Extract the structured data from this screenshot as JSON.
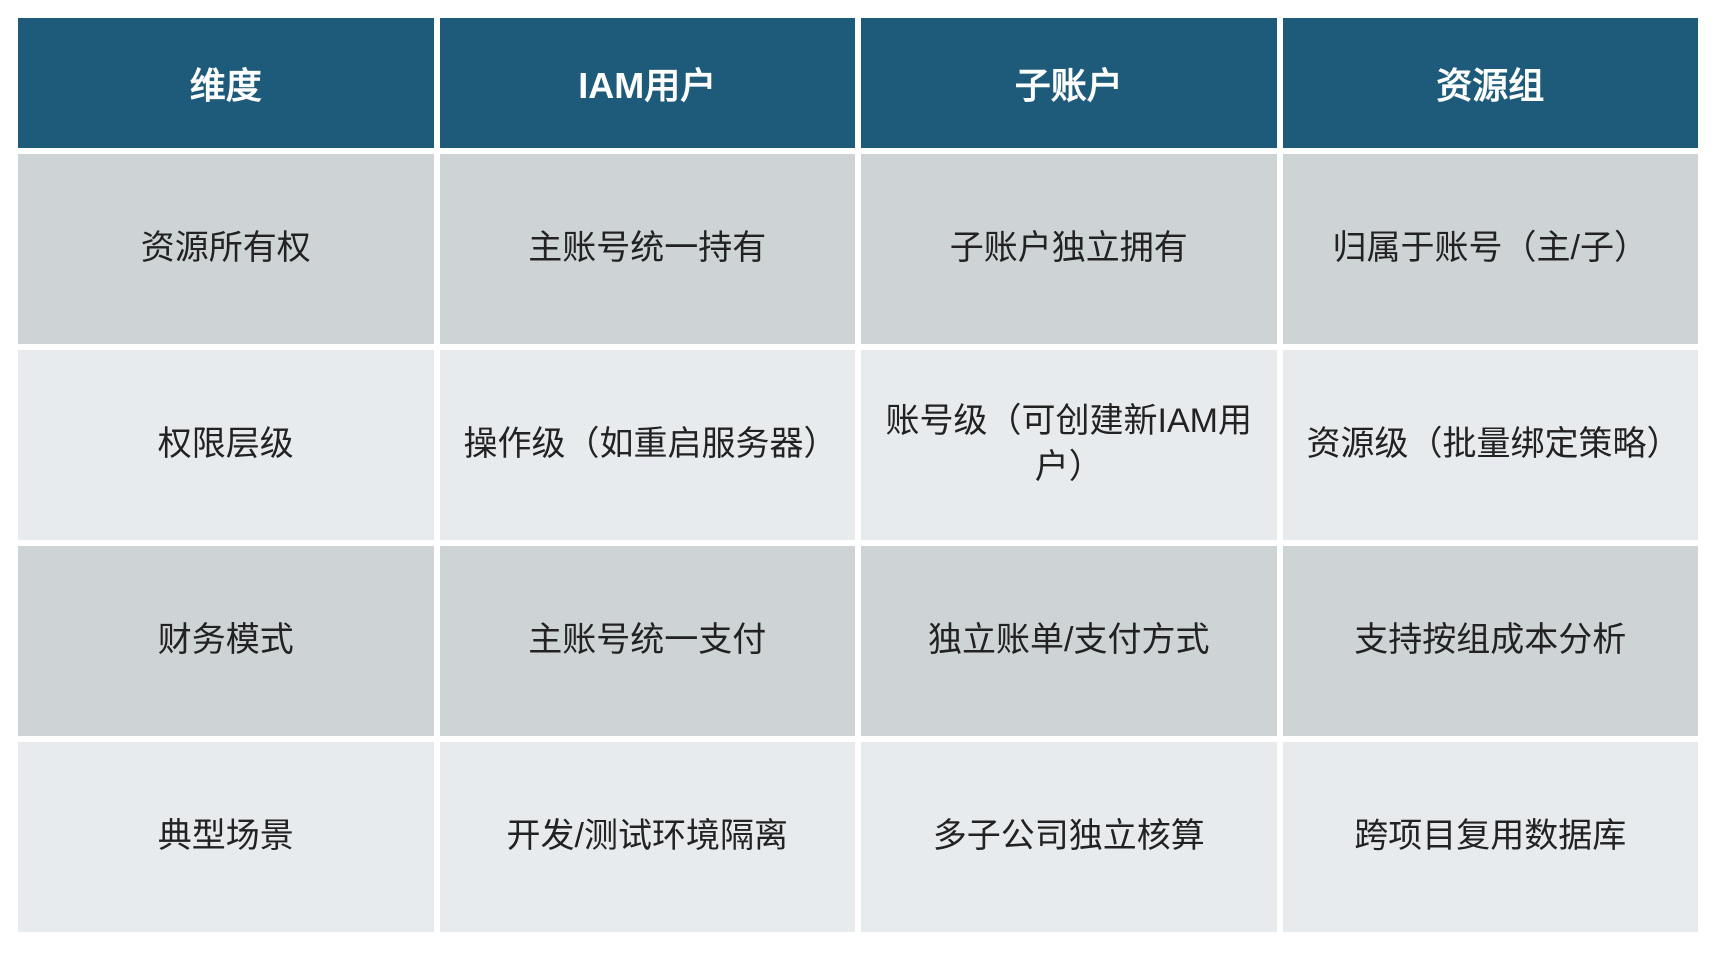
{
  "table": {
    "type": "table",
    "header_bg": "#1e5b7a",
    "header_text_color": "#ffffff",
    "row_bg_odd": "#ced3d6",
    "row_bg_even": "#e8ebed",
    "cell_text_color": "#222222",
    "header_fontsize": 36,
    "cell_fontsize": 34,
    "border_spacing": 6,
    "columns": [
      "维度",
      "IAM用户",
      "子账户",
      "资源组"
    ],
    "rows": [
      [
        "资源所有权",
        "主账号统一持有",
        "子账户独立拥有",
        "归属于账号（主/子）"
      ],
      [
        "权限层级",
        "操作级（如重启服务器）",
        "账号级（可创建新IAM用户）",
        "资源级（批量绑定策略）"
      ],
      [
        "财务模式",
        "主账号统一支付",
        "独立账单/支付方式",
        "支持按组成本分析"
      ],
      [
        "典型场景",
        "开发/测试环境隔离",
        "多子公司独立核算",
        "跨项目复用数据库"
      ]
    ]
  }
}
